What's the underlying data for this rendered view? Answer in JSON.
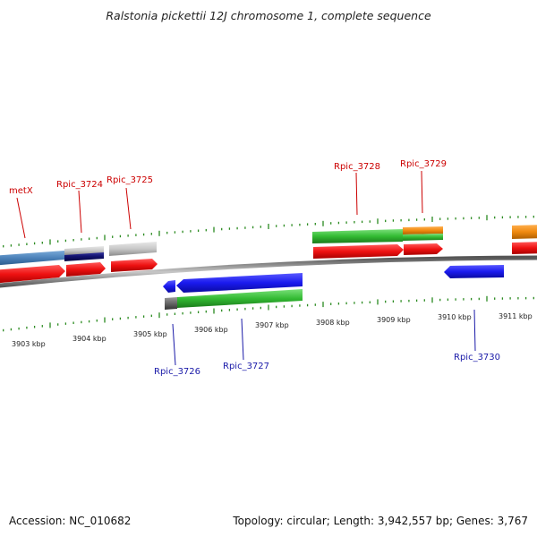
{
  "title": "Ralstonia pickettii 12J chromosome 1, complete sequence",
  "accession": "Accession: NC_010682",
  "topology": "Topology: circular; Length: 3,942,557 bp; Genes: 3,767",
  "colors": {
    "backbone": "#8a8a8a",
    "outer_ticks": "#2a8a1f",
    "inner_ticks": "#2a8a1f",
    "label_forward": "#cc0000",
    "label_reverse": "#1a1aa8",
    "gene_red": "#ee1111",
    "gene_blue": "#1a1aee",
    "gene_green": "#33bb33",
    "gene_orange": "#f08a10",
    "gene_grey": "#c8c8c8",
    "gene_steelblue": "#4a80b8",
    "gene_navy": "#11116e",
    "gene_darkgrey": "#555555"
  },
  "kbp_labels": [
    "3903 kbp",
    "3904 kbp",
    "3905 kbp",
    "3906 kbp",
    "3907 kbp",
    "3908 kbp",
    "3909 kbp",
    "3910 kbp",
    "3911 kbp"
  ],
  "gene_labels_top": [
    "metX",
    "Rpic_3724",
    "Rpic_3725",
    "Rpic_3728",
    "Rpic_3729"
  ],
  "gene_labels_bottom": [
    "Rpic_3726",
    "Rpic_3727",
    "Rpic_3730"
  ]
}
